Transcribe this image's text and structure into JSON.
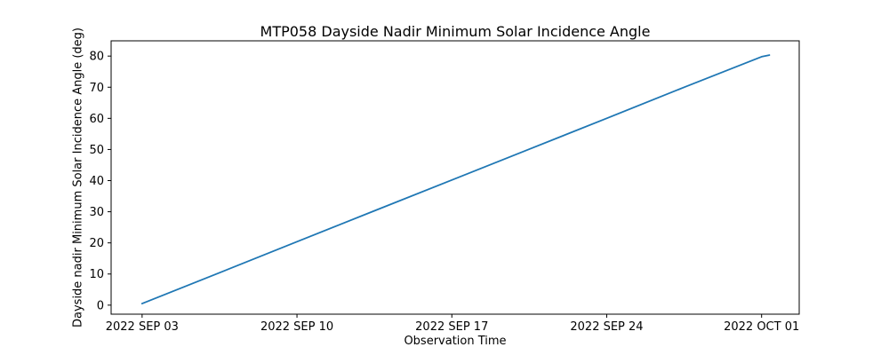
{
  "chart_data": {
    "type": "line",
    "title": "MTP058 Dayside Nadir Minimum Solar Incidence Angle",
    "xlabel": "Observation Time",
    "ylabel": "Dayside nadir Minimum Solar Incidence Angle (deg)",
    "x_tick_labels": [
      "2022 SEP 03",
      "2022 SEP 10",
      "2022 SEP 17",
      "2022 SEP 24",
      "2022 OCT 01"
    ],
    "x_tick_days": [
      0,
      7,
      14,
      21,
      28
    ],
    "y_ticks": [
      0,
      10,
      20,
      30,
      40,
      50,
      60,
      70,
      80
    ],
    "xlim_days": [
      -1.4,
      29.7
    ],
    "ylim": [
      -2.9,
      84.9
    ],
    "grid": false,
    "legend": "none",
    "line_color": "#1f77b4",
    "background_color": "#ffffff",
    "axis_color": "#000000",
    "series": [
      {
        "name": "Dayside nadir minimum solar incidence angle",
        "x_days": [
          0,
          3.5,
          7,
          10.5,
          14,
          17.5,
          21,
          24.5,
          28,
          28.35
        ],
        "values": [
          0.5,
          10.4,
          20.4,
          30.3,
          40.2,
          50.1,
          60.0,
          70.0,
          79.8,
          80.3
        ]
      }
    ]
  }
}
